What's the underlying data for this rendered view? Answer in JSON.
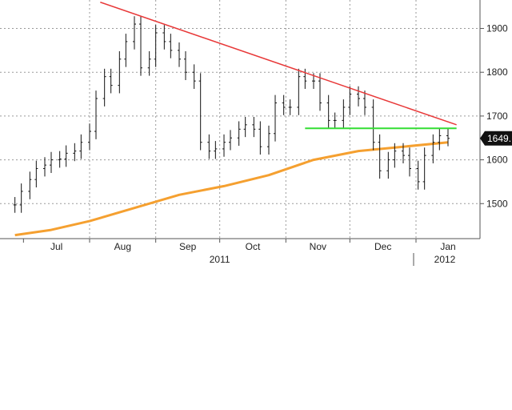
{
  "chart_data": {
    "type": "line",
    "title": "",
    "xlabel": "",
    "ylabel": "",
    "ylim": [
      1420,
      1965
    ],
    "grid": true,
    "y_axis_side": "right",
    "y_ticks": [
      "1900",
      "1800",
      "1700",
      "1600",
      "1500"
    ],
    "y_tick_values": [
      1900,
      1800,
      1700,
      1600,
      1500
    ],
    "x_ticks": [
      "Jul",
      "Aug",
      "Sep",
      "Oct",
      "Nov",
      "Dec",
      "Jan"
    ],
    "x_year_labels": [
      "2011",
      "2012"
    ],
    "last_price_label": "1649.",
    "last_price_value": 1649,
    "colors": {
      "price": "#111111",
      "moving_average": "#f5a030",
      "resistance": "#e83838",
      "support": "#33dd33",
      "grid": "#9a9a9a",
      "last_price_tag": "#111111"
    },
    "series": [
      {
        "type": "ohlc",
        "dates": [
          "2011-06-27",
          "2011-06-30",
          "2011-07-04",
          "2011-07-07",
          "2011-07-11",
          "2011-07-14",
          "2011-07-18",
          "2011-07-21",
          "2011-07-25",
          "2011-07-28",
          "2011-08-01",
          "2011-08-04",
          "2011-08-08",
          "2011-08-11",
          "2011-08-15",
          "2011-08-18",
          "2011-08-22",
          "2011-08-25",
          "2011-08-29",
          "2011-09-01",
          "2011-09-05",
          "2011-09-08",
          "2011-09-12",
          "2011-09-15",
          "2011-09-19",
          "2011-09-22",
          "2011-09-26",
          "2011-09-29",
          "2011-10-03",
          "2011-10-06",
          "2011-10-10",
          "2011-10-13",
          "2011-10-17",
          "2011-10-20",
          "2011-10-24",
          "2011-10-27",
          "2011-10-31",
          "2011-11-03",
          "2011-11-07",
          "2011-11-10",
          "2011-11-14",
          "2011-11-17",
          "2011-11-21",
          "2011-11-24",
          "2011-11-28",
          "2011-12-01",
          "2011-12-05",
          "2011-12-08",
          "2011-12-12",
          "2011-12-15",
          "2011-12-19",
          "2011-12-22",
          "2011-12-26",
          "2011-12-29",
          "2012-01-02",
          "2012-01-05",
          "2012-01-09",
          "2012-01-12",
          "2012-01-16"
        ],
        "close": [
          1497,
          1528,
          1555,
          1580,
          1588,
          1600,
          1602,
          1615,
          1620,
          1640,
          1665,
          1740,
          1790,
          1770,
          1830,
          1870,
          1910,
          1810,
          1830,
          1890,
          1870,
          1850,
          1830,
          1800,
          1780,
          1640,
          1620,
          1625,
          1640,
          1650,
          1670,
          1680,
          1670,
          1630,
          1660,
          1730,
          1720,
          1720,
          1790,
          1780,
          1780,
          1730,
          1690,
          1690,
          1720,
          1750,
          1740,
          1720,
          1640,
          1575,
          1600,
          1620,
          1610,
          1580,
          1550,
          1610,
          1640,
          1655,
          1649
        ]
      },
      {
        "name": "",
        "type": "line",
        "x_dates": [
          "2011-06-27",
          "2011-07-14",
          "2011-08-01",
          "2011-08-22",
          "2011-09-12",
          "2011-10-03",
          "2011-10-24",
          "2011-11-14",
          "2011-12-05",
          "2011-12-26",
          "2012-01-16"
        ],
        "values": [
          1428,
          1440,
          1460,
          1490,
          1520,
          1540,
          1565,
          1600,
          1620,
          1630,
          1640
        ]
      },
      {
        "name": "",
        "type": "trendline",
        "x_dates": [
          "2011-08-06",
          "2012-01-20"
        ],
        "values": [
          1960,
          1680
        ]
      },
      {
        "name": "",
        "type": "trendline",
        "x_dates": [
          "2011-11-10",
          "2012-01-20"
        ],
        "values": [
          1672,
          1672
        ]
      }
    ]
  }
}
